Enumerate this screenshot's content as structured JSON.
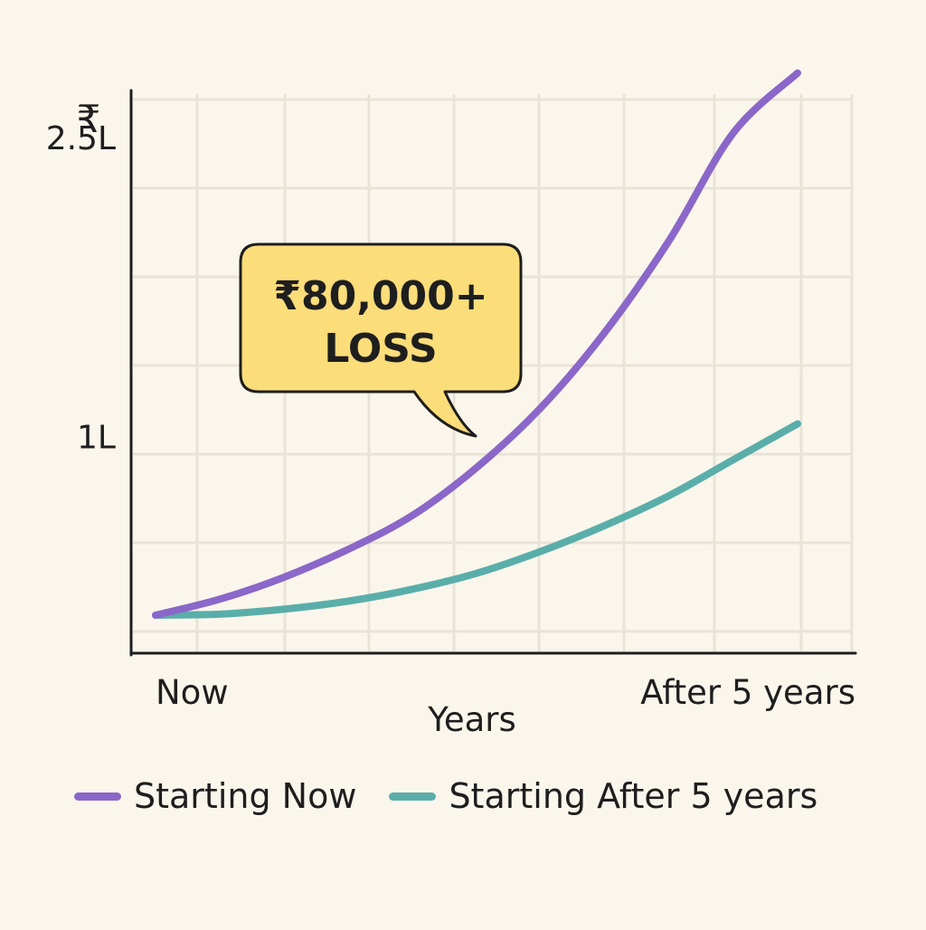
{
  "chart_data": {
    "type": "line",
    "title": "",
    "y_axis_symbol": "₹",
    "xlabel": "Years",
    "x_ticks": [
      "Now",
      "After 5 years"
    ],
    "y_ticks": [
      {
        "label": "1L",
        "value": 100000
      },
      {
        "label": "2.5L",
        "value": 250000
      }
    ],
    "xlim": [
      0,
      5
    ],
    "ylim": [
      0,
      315000
    ],
    "grid": true,
    "legend_placement": "bottom",
    "annotation": {
      "lines": [
        "₹80,000+",
        "LOSS"
      ],
      "color": "#fbdd7a",
      "x": 2.3,
      "y": 100000
    },
    "series": [
      {
        "name": "Starting Now",
        "color": "#8a67c9",
        "x": [
          0,
          0.5,
          1,
          1.5,
          2,
          2.5,
          3,
          3.5,
          4,
          4.5,
          5
        ],
        "values": [
          10000,
          18000,
          29000,
          43000,
          60000,
          84000,
          114000,
          152000,
          198000,
          252000,
          282000
        ]
      },
      {
        "name": "Starting After 5 years",
        "color": "#5aaeaa",
        "x": [
          0,
          0.5,
          1,
          1.5,
          2,
          2.5,
          3,
          3.5,
          4,
          4.5,
          5
        ],
        "values": [
          10000,
          10500,
          13000,
          17000,
          23000,
          31000,
          42000,
          55000,
          70000,
          88000,
          106000
        ]
      }
    ]
  }
}
